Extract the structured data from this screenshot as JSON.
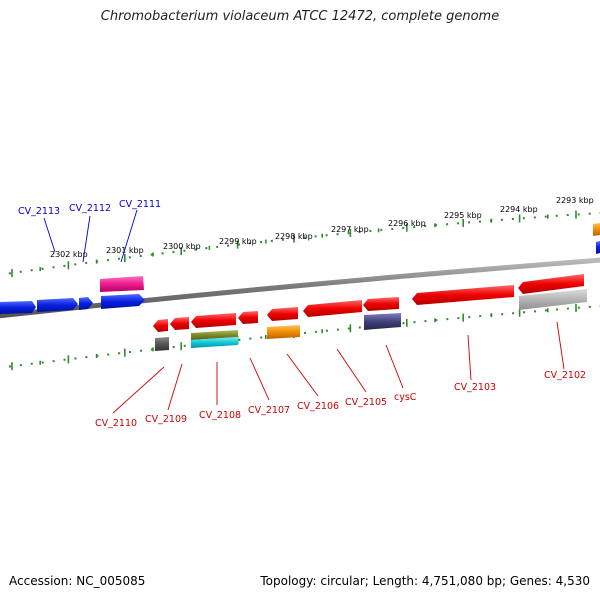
{
  "title": "Chromobacterium violaceum ATCC 12472, complete genome",
  "accession_text": "Accession: NC_005085",
  "topology_text": "Topology: circular; Length: 4,751,080 bp; Genes: 4,530",
  "colors": {
    "backbone": "#8a8a8a",
    "tick": "#2e8b2e",
    "forward_label": "#0000cc",
    "reverse_label": "#cc0000"
  },
  "scale_labels": [
    "2302 kbp",
    "2301 kbp",
    "2300 kbp",
    "2299 kbp",
    "2298 kbp",
    "2297 kbp",
    "2296 kbp",
    "2295 kbp",
    "2294 kbp",
    "2293 kbp"
  ],
  "forward_genes": [
    "CV_2113",
    "CV_2112",
    "CV_2111"
  ],
  "reverse_genes": [
    "CV_2110",
    "CV_2109",
    "CV_2108",
    "CV_2107",
    "CV_2106",
    "CV_2105",
    "cysC",
    "CV_2103",
    "CV_2102"
  ]
}
